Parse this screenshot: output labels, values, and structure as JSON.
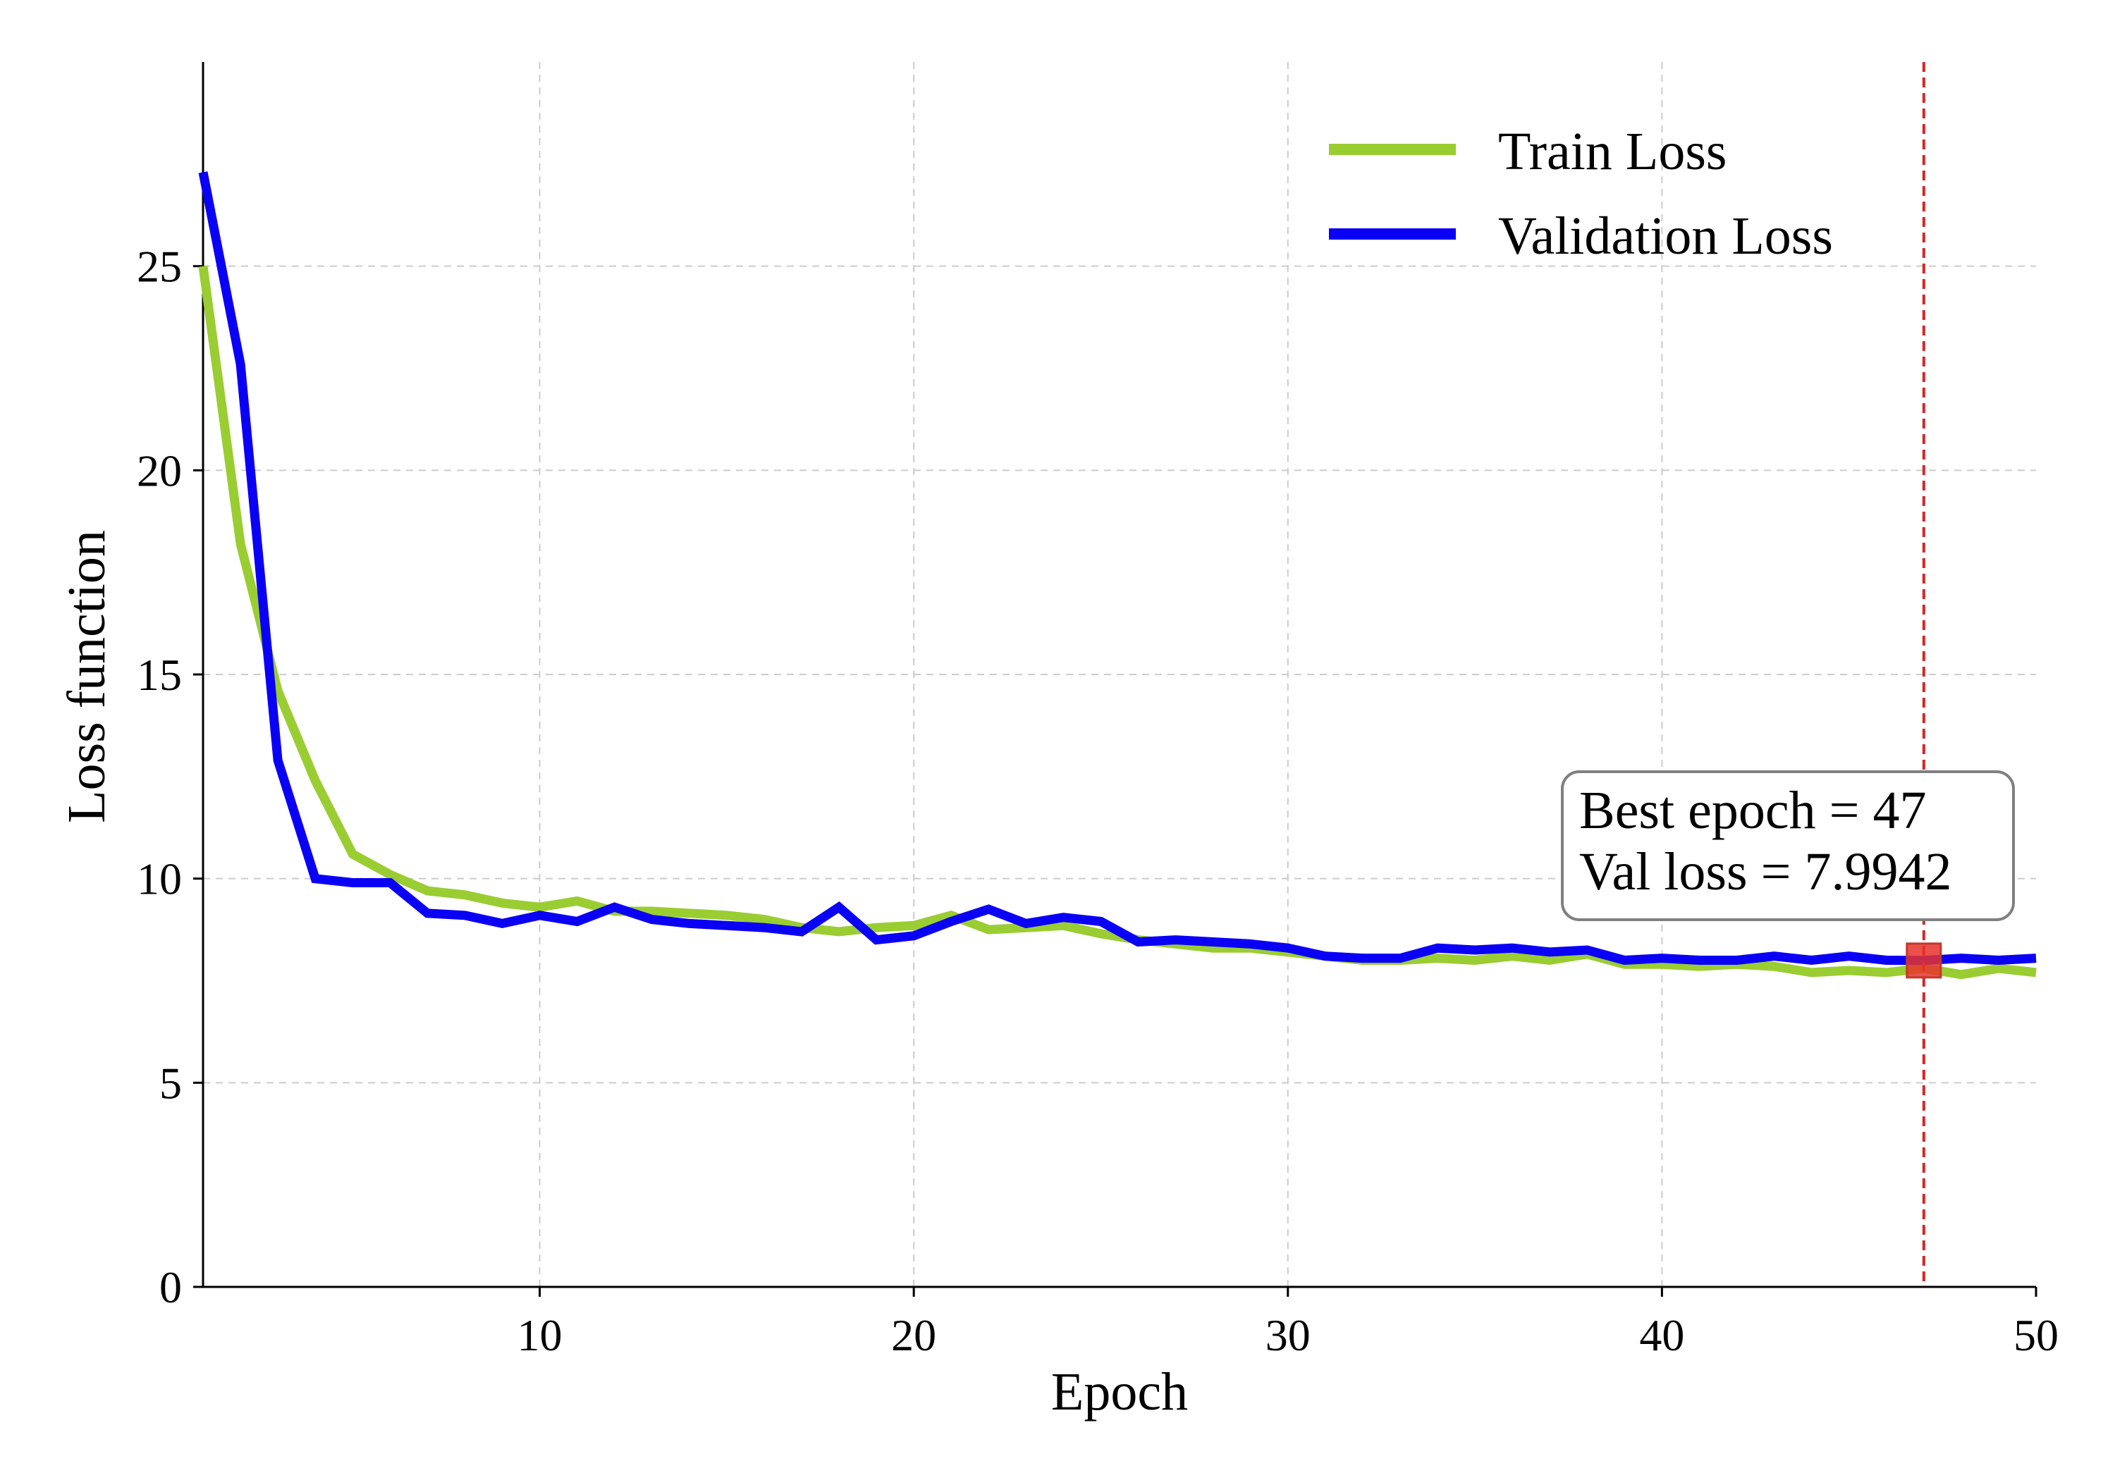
{
  "chart_data": {
    "type": "line",
    "title": "",
    "xlabel": "Epoch",
    "ylabel": "Loss function",
    "xlim": [
      1,
      50
    ],
    "ylim": [
      0,
      30
    ],
    "xticks": [
      10,
      20,
      30,
      40,
      50
    ],
    "yticks": [
      0,
      5,
      10,
      15,
      20,
      25
    ],
    "grid": true,
    "legend_position": "top-right",
    "x": [
      1,
      2,
      3,
      4,
      5,
      6,
      7,
      8,
      9,
      10,
      11,
      12,
      13,
      14,
      15,
      16,
      17,
      18,
      19,
      20,
      21,
      22,
      23,
      24,
      25,
      26,
      27,
      28,
      29,
      30,
      31,
      32,
      33,
      34,
      35,
      36,
      37,
      38,
      39,
      40,
      41,
      42,
      43,
      44,
      45,
      46,
      47,
      48,
      49,
      50
    ],
    "series": [
      {
        "name": "Train Loss",
        "color": "#9acd32",
        "values": [
          25.0,
          18.2,
          14.6,
          12.4,
          10.6,
          10.1,
          9.7,
          9.6,
          9.4,
          9.3,
          9.45,
          9.2,
          9.2,
          9.15,
          9.1,
          9.0,
          8.8,
          8.7,
          8.8,
          8.85,
          9.1,
          8.75,
          8.8,
          8.85,
          8.65,
          8.5,
          8.4,
          8.3,
          8.3,
          8.2,
          8.1,
          8.0,
          8.0,
          8.05,
          8.0,
          8.1,
          8.0,
          8.15,
          7.9,
          7.9,
          7.85,
          7.9,
          7.85,
          7.7,
          7.75,
          7.7,
          7.8,
          7.65,
          7.8,
          7.7
        ]
      },
      {
        "name": "Validation Loss",
        "color": "#0a00f5",
        "values": [
          27.3,
          22.6,
          12.9,
          10.0,
          9.9,
          9.9,
          9.15,
          9.1,
          8.9,
          9.1,
          8.95,
          9.3,
          9.0,
          8.9,
          8.85,
          8.8,
          8.7,
          9.3,
          8.5,
          8.6,
          8.95,
          9.25,
          8.9,
          9.05,
          8.95,
          8.45,
          8.5,
          8.45,
          8.4,
          8.3,
          8.1,
          8.05,
          8.05,
          8.3,
          8.25,
          8.3,
          8.2,
          8.25,
          8.0,
          8.05,
          8.0,
          8.0,
          8.1,
          8.0,
          8.1,
          8.0,
          7.9942,
          8.05,
          8.0,
          8.05
        ]
      }
    ],
    "best_epoch_line": {
      "x": 47,
      "color": "#d62728"
    },
    "best_marker": {
      "x": 47,
      "y": 7.9942,
      "color": "#e8322c"
    },
    "annotation": {
      "line1": "Best epoch = 47",
      "line2": "Val loss = 7.9942"
    }
  }
}
